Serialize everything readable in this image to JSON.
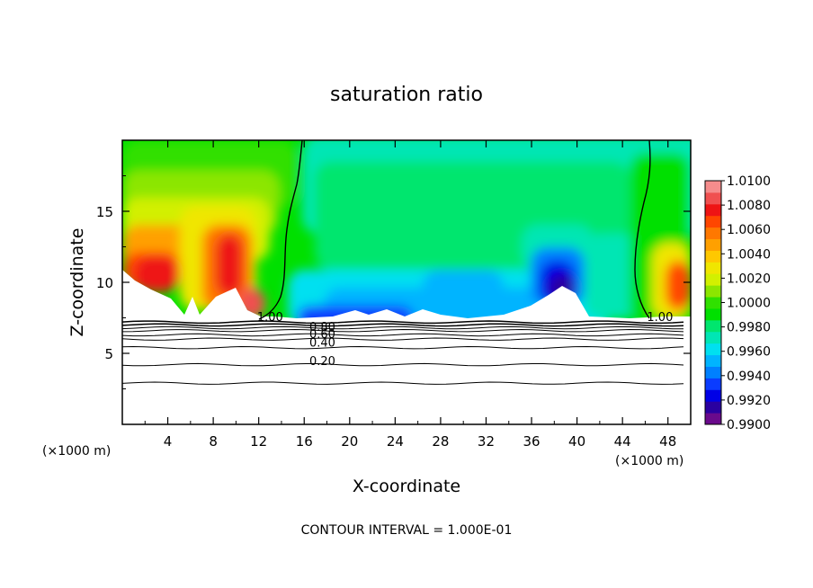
{
  "chart_data": {
    "type": "heatmap",
    "title": "saturation ratio",
    "xlabel": "X-coordinate",
    "ylabel": "Z-coordinate",
    "x_unit_left": "(×1000 m)",
    "x_unit_right": "(×1000 m)",
    "xlim": [
      0,
      50
    ],
    "ylim": [
      0,
      20
    ],
    "xticks": [
      "4",
      "8",
      "12",
      "16",
      "20",
      "24",
      "28",
      "32",
      "36",
      "40",
      "44",
      "48"
    ],
    "yticks": [
      "5",
      "10",
      "15"
    ],
    "footer": "CONTOUR INTERVAL = 1.000E-01",
    "colorbar": {
      "vmin": 0.99,
      "vmax": 1.01,
      "tick_labels": [
        "1.0100",
        "1.0080",
        "1.0060",
        "1.0040",
        "1.0020",
        "1.0000",
        "0.9980",
        "0.9960",
        "0.9940",
        "0.9920",
        "0.9900"
      ],
      "colors": [
        "#6a0a8c",
        "#2a00a0",
        "#0000e6",
        "#0a3cff",
        "#0080ff",
        "#00b4ff",
        "#00e0f0",
        "#00e6b4",
        "#00e66e",
        "#00e000",
        "#30e000",
        "#8ce600",
        "#d2f000",
        "#f0e600",
        "#ffc800",
        "#ffa000",
        "#ff7800",
        "#ff4600",
        "#ee1414",
        "#f05050",
        "#f58c8c"
      ]
    },
    "contour_labels": [
      {
        "text": "1.00",
        "x": 13.0,
        "y": 7.6
      },
      {
        "text": "1.00",
        "x": 47.3,
        "y": 7.6
      },
      {
        "text": "0.80",
        "x": 17.6,
        "y": 6.9
      },
      {
        "text": "0.60",
        "x": 17.6,
        "y": 6.4
      },
      {
        "text": "0.40",
        "x": 17.6,
        "y": 5.8
      },
      {
        "text": "0.20",
        "x": 17.6,
        "y": 4.5
      }
    ],
    "contour_levels_below_cloud": [
      7.2,
      7.0,
      6.8,
      6.6,
      6.3,
      6.0,
      5.4,
      4.2,
      2.9
    ],
    "cloud_base_height": 7.2
  }
}
